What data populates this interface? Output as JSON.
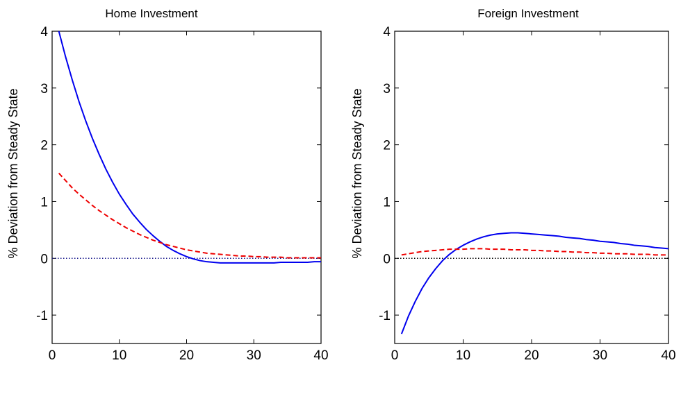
{
  "colors": {
    "solid_line": "#0000ee",
    "dashed_line": "#ee0000",
    "zero_line_left": "#1a1a8c",
    "zero_line_right": "#000000",
    "axes": "#000000"
  },
  "chart_data": [
    {
      "type": "line",
      "title": "Home Investment",
      "ylabel": "% Deviation from Steady State",
      "xlabel": "",
      "xlim": [
        0,
        40
      ],
      "ylim": [
        -1.5,
        4
      ],
      "xticks": [
        0,
        10,
        20,
        30,
        40
      ],
      "yticks": [
        -1,
        0,
        1,
        2,
        3,
        4
      ],
      "grid": false,
      "zero_line": {
        "y": 0,
        "style": "dotted",
        "color": "#1a1a8c"
      },
      "series": [
        {
          "style": "solid",
          "color": "#0000ee",
          "x": [
            1,
            2,
            3,
            4,
            5,
            6,
            7,
            8,
            9,
            10,
            11,
            12,
            13,
            14,
            15,
            16,
            17,
            18,
            19,
            20,
            21,
            22,
            23,
            24,
            25,
            26,
            27,
            28,
            29,
            30,
            31,
            32,
            33,
            34,
            35,
            36,
            37,
            38,
            39,
            40
          ],
          "y": [
            4.0,
            3.55,
            3.14,
            2.76,
            2.42,
            2.11,
            1.83,
            1.57,
            1.34,
            1.13,
            0.95,
            0.78,
            0.64,
            0.51,
            0.4,
            0.3,
            0.21,
            0.14,
            0.08,
            0.03,
            -0.01,
            -0.04,
            -0.06,
            -0.07,
            -0.08,
            -0.08,
            -0.08,
            -0.08,
            -0.08,
            -0.08,
            -0.08,
            -0.08,
            -0.08,
            -0.07,
            -0.07,
            -0.07,
            -0.07,
            -0.07,
            -0.06,
            -0.06
          ]
        },
        {
          "style": "dashed",
          "color": "#ee0000",
          "x": [
            1,
            2,
            3,
            4,
            5,
            6,
            7,
            8,
            9,
            10,
            11,
            12,
            13,
            14,
            15,
            16,
            17,
            18,
            19,
            20,
            21,
            22,
            23,
            24,
            25,
            26,
            27,
            28,
            29,
            30,
            31,
            32,
            33,
            34,
            35,
            36,
            37,
            38,
            39,
            40
          ],
          "y": [
            1.5,
            1.37,
            1.24,
            1.13,
            1.03,
            0.93,
            0.84,
            0.76,
            0.68,
            0.61,
            0.54,
            0.48,
            0.42,
            0.37,
            0.32,
            0.28,
            0.24,
            0.21,
            0.18,
            0.15,
            0.13,
            0.11,
            0.09,
            0.08,
            0.07,
            0.06,
            0.05,
            0.04,
            0.04,
            0.03,
            0.03,
            0.02,
            0.02,
            0.02,
            0.01,
            0.01,
            0.01,
            0.01,
            0.01,
            0.01
          ]
        }
      ]
    },
    {
      "type": "line",
      "title": "Foreign Investment",
      "ylabel": "% Deviation from Steady State",
      "xlabel": "",
      "xlim": [
        0,
        40
      ],
      "ylim": [
        -1.5,
        4
      ],
      "xticks": [
        0,
        10,
        20,
        30,
        40
      ],
      "yticks": [
        -1,
        0,
        1,
        2,
        3,
        4
      ],
      "grid": false,
      "zero_line": {
        "y": 0,
        "style": "dotted",
        "color": "#000000"
      },
      "series": [
        {
          "style": "solid",
          "color": "#0000ee",
          "x": [
            1,
            2,
            3,
            4,
            5,
            6,
            7,
            8,
            9,
            10,
            11,
            12,
            13,
            14,
            15,
            16,
            17,
            18,
            19,
            20,
            21,
            22,
            23,
            24,
            25,
            26,
            27,
            28,
            29,
            30,
            31,
            32,
            33,
            34,
            35,
            36,
            37,
            38,
            39,
            40
          ],
          "y": [
            -1.33,
            -1.02,
            -0.76,
            -0.53,
            -0.34,
            -0.18,
            -0.04,
            0.07,
            0.16,
            0.23,
            0.29,
            0.34,
            0.38,
            0.41,
            0.43,
            0.44,
            0.45,
            0.45,
            0.44,
            0.43,
            0.42,
            0.41,
            0.4,
            0.39,
            0.37,
            0.36,
            0.35,
            0.33,
            0.32,
            0.3,
            0.29,
            0.28,
            0.26,
            0.25,
            0.23,
            0.22,
            0.21,
            0.19,
            0.18,
            0.17
          ]
        },
        {
          "style": "dashed",
          "color": "#ee0000",
          "x": [
            1,
            2,
            3,
            4,
            5,
            6,
            7,
            8,
            9,
            10,
            11,
            12,
            13,
            14,
            15,
            16,
            17,
            18,
            19,
            20,
            21,
            22,
            23,
            24,
            25,
            26,
            27,
            28,
            29,
            30,
            31,
            32,
            33,
            34,
            35,
            36,
            37,
            38,
            39,
            40
          ],
          "y": [
            0.06,
            0.08,
            0.1,
            0.12,
            0.13,
            0.14,
            0.15,
            0.16,
            0.16,
            0.16,
            0.17,
            0.17,
            0.17,
            0.16,
            0.16,
            0.16,
            0.15,
            0.15,
            0.15,
            0.14,
            0.14,
            0.13,
            0.13,
            0.12,
            0.12,
            0.11,
            0.11,
            0.1,
            0.1,
            0.09,
            0.09,
            0.08,
            0.08,
            0.08,
            0.07,
            0.07,
            0.07,
            0.06,
            0.06,
            0.06
          ]
        }
      ]
    }
  ]
}
